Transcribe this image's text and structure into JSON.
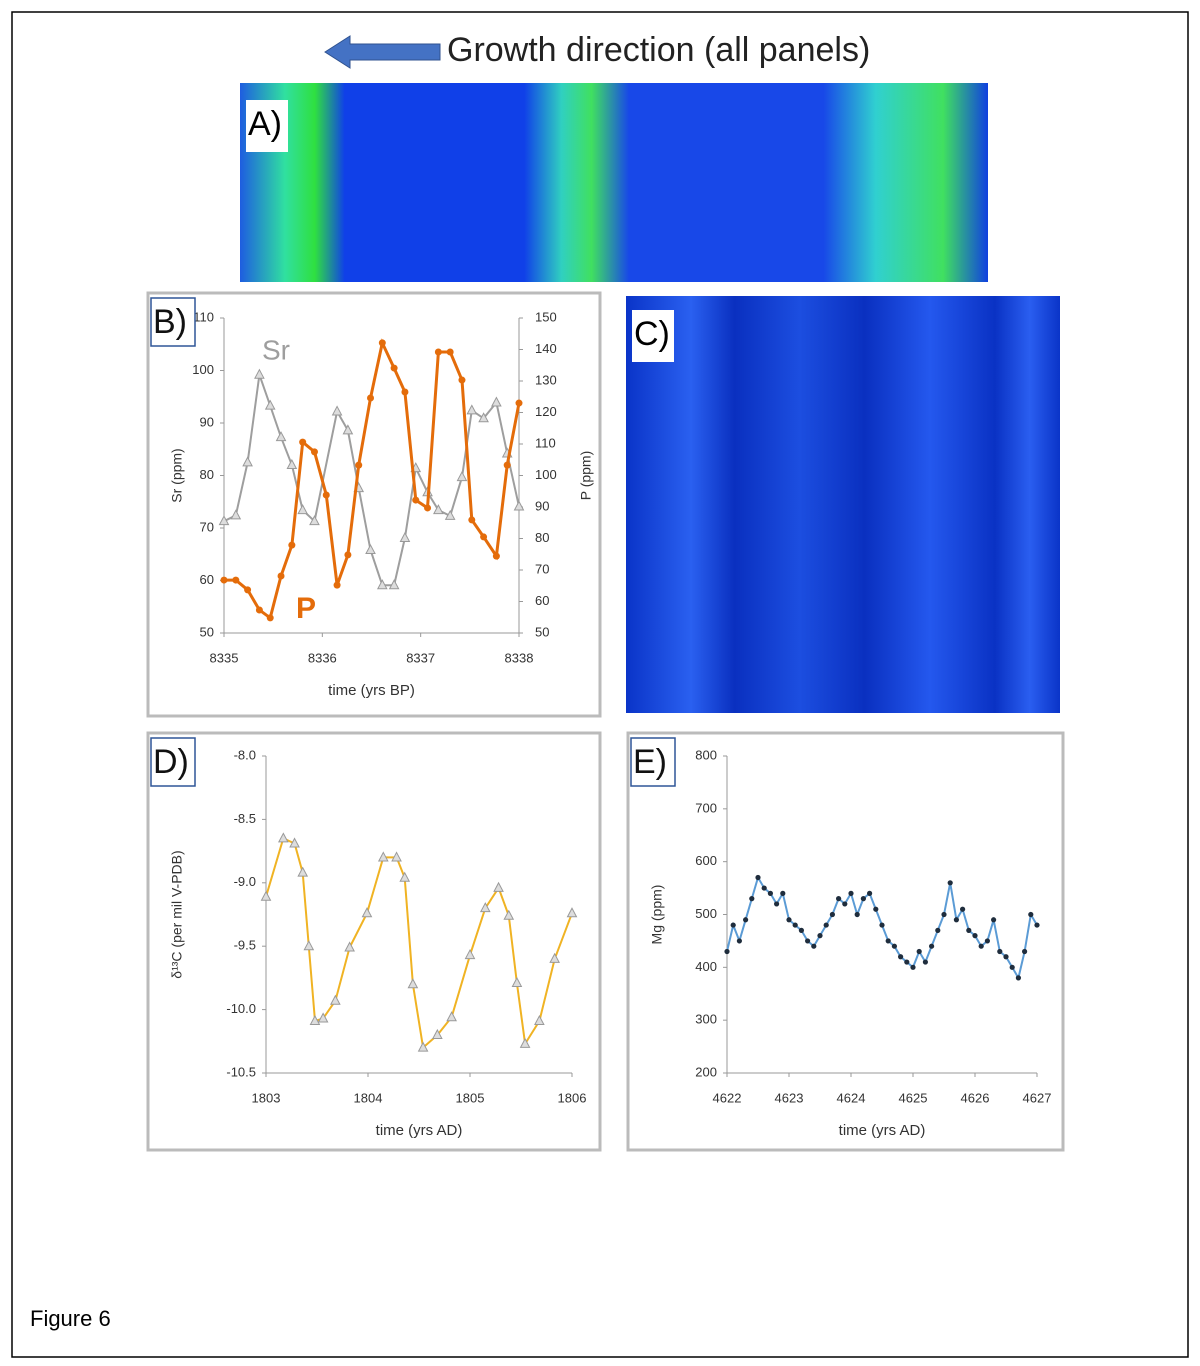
{
  "header": {
    "title": "Growth direction (all panels)"
  },
  "images": [
    {
      "label": "A)"
    },
    {
      "label": "C)"
    }
  ],
  "caption": "Figure 6",
  "chart_data": [
    {
      "type": "line",
      "label": "B)",
      "xlabel": "time (yrs BP)",
      "ylabel": "Sr (ppm)",
      "y2label": "P (ppm)",
      "xlim": [
        8335,
        8338
      ],
      "xticks": [
        8335,
        8336,
        8337,
        8338
      ],
      "ylim": [
        50,
        110
      ],
      "yticks": [
        50,
        60,
        70,
        80,
        90,
        100,
        110
      ],
      "y2lim": [
        50,
        150
      ],
      "y2ticks": [
        50,
        60,
        70,
        80,
        90,
        100,
        110,
        120,
        130,
        140,
        150
      ],
      "series": [
        {
          "name": "Sr",
          "color": "#9e9e9e",
          "marker": "triangle",
          "x": [
            8335.0,
            8335.12,
            8335.24,
            8335.36,
            8335.47,
            8335.58,
            8335.69,
            8335.8,
            8335.92,
            8336.15,
            8336.26,
            8336.37,
            8336.49,
            8336.61,
            8336.73,
            8336.84,
            8336.95,
            8337.07,
            8337.18,
            8337.3,
            8337.42,
            8337.52,
            8337.64,
            8337.77,
            8337.88,
            8338.0
          ],
          "values": [
            71.3,
            72.4,
            82.5,
            99.2,
            93.3,
            87.3,
            82.0,
            73.4,
            71.3,
            92.2,
            88.6,
            77.6,
            65.8,
            59.1,
            59.1,
            68.1,
            81.4,
            76.8,
            73.4,
            72.3,
            79.7,
            92.4,
            90.9,
            93.9,
            84.2,
            74.1
          ]
        },
        {
          "name": "P",
          "color": "#e46c0a",
          "marker": "circle",
          "axis": "y2",
          "x": [
            8335.0,
            8335.12,
            8335.24,
            8335.36,
            8335.47,
            8335.58,
            8335.69,
            8335.8,
            8335.92,
            8336.04,
            8336.15,
            8336.26,
            8336.37,
            8336.49,
            8336.61,
            8336.73,
            8336.84,
            8336.95,
            8337.07,
            8337.18,
            8337.3,
            8337.42,
            8337.52,
            8337.64,
            8337.77,
            8337.88,
            8338.0
          ],
          "values": [
            66.8,
            66.8,
            63.7,
            57.3,
            54.8,
            68.1,
            77.9,
            110.6,
            107.5,
            93.8,
            65.2,
            74.8,
            103.3,
            124.6,
            142.1,
            134.1,
            126.5,
            92.2,
            89.7,
            139.2,
            139.2,
            130.3,
            85.9,
            80.5,
            74.4,
            103.3,
            123.0
          ]
        }
      ]
    },
    {
      "type": "line",
      "label": "D)",
      "xlabel": "time (yrs AD)",
      "ylabel": "δ¹³C (per mil V-PDB)",
      "xlim": [
        1803,
        1806
      ],
      "xticks": [
        1803,
        1804,
        1805,
        1806
      ],
      "ylim": [
        -10.5,
        -8
      ],
      "yticks": [
        {
          "value": -8,
          "label": "-8.0"
        },
        -8.5,
        {
          "value": -9,
          "label": "-9.0"
        },
        -9.5,
        {
          "value": -10,
          "label": "-10.0"
        },
        -10.5
      ],
      "series": [
        {
          "color": "#f0b323",
          "marker": "triangle",
          "x": [
            1803.0,
            1803.17,
            1803.28,
            1803.36,
            1803.42,
            1803.48,
            1803.56,
            1803.68,
            1803.82,
            1803.99,
            1804.15,
            1804.28,
            1804.36,
            1804.44,
            1804.54,
            1804.68,
            1804.82,
            1805.0,
            1805.15,
            1805.28,
            1805.38,
            1805.46,
            1805.54,
            1805.68,
            1805.83,
            1806.0
          ],
          "values": [
            -9.11,
            -8.65,
            -8.69,
            -8.92,
            -9.5,
            -10.09,
            -10.07,
            -9.93,
            -9.51,
            -9.24,
            -8.8,
            -8.8,
            -8.96,
            -9.8,
            -10.3,
            -10.2,
            -10.06,
            -9.57,
            -9.2,
            -9.04,
            -9.26,
            -9.79,
            -10.27,
            -10.09,
            -9.6,
            -9.24
          ]
        }
      ]
    },
    {
      "type": "line",
      "label": "E)",
      "xlabel": "time (yrs AD)",
      "ylabel": "Mg (ppm)",
      "xlim": [
        4622,
        4627
      ],
      "xticks": [
        4622,
        4623,
        4624,
        4625,
        4626,
        4627
      ],
      "ylim": [
        200,
        800
      ],
      "yticks": [
        200,
        300,
        400,
        500,
        600,
        700,
        800
      ],
      "series": [
        {
          "color": "#5b9bd5",
          "marker": "dot",
          "x": [
            4622.0,
            4622.1,
            4622.2,
            4622.3,
            4622.4,
            4622.5,
            4622.6,
            4622.7,
            4622.8,
            4622.9,
            4623.0,
            4623.1,
            4623.2,
            4623.3,
            4623.4,
            4623.5,
            4623.6,
            4623.7,
            4623.8,
            4623.9,
            4624.0,
            4624.1,
            4624.2,
            4624.3,
            4624.4,
            4624.5,
            4624.6,
            4624.7,
            4624.8,
            4624.9,
            4625.0,
            4625.1,
            4625.2,
            4625.3,
            4625.4,
            4625.5,
            4625.6,
            4625.7,
            4625.8,
            4625.9,
            4626.0,
            4626.1,
            4626.2,
            4626.3,
            4626.4,
            4626.5,
            4626.6,
            4626.7,
            4626.8,
            4626.9,
            4627.0
          ],
          "values": [
            430,
            480,
            450,
            490,
            530,
            570,
            550,
            540,
            520,
            540,
            490,
            480,
            470,
            450,
            440,
            460,
            480,
            500,
            530,
            520,
            540,
            500,
            530,
            540,
            510,
            480,
            450,
            440,
            420,
            410,
            400,
            430,
            410,
            440,
            470,
            500,
            560,
            490,
            510,
            470,
            460,
            440,
            450,
            490,
            430,
            420,
            400,
            380,
            430,
            500,
            480
          ]
        }
      ]
    }
  ]
}
